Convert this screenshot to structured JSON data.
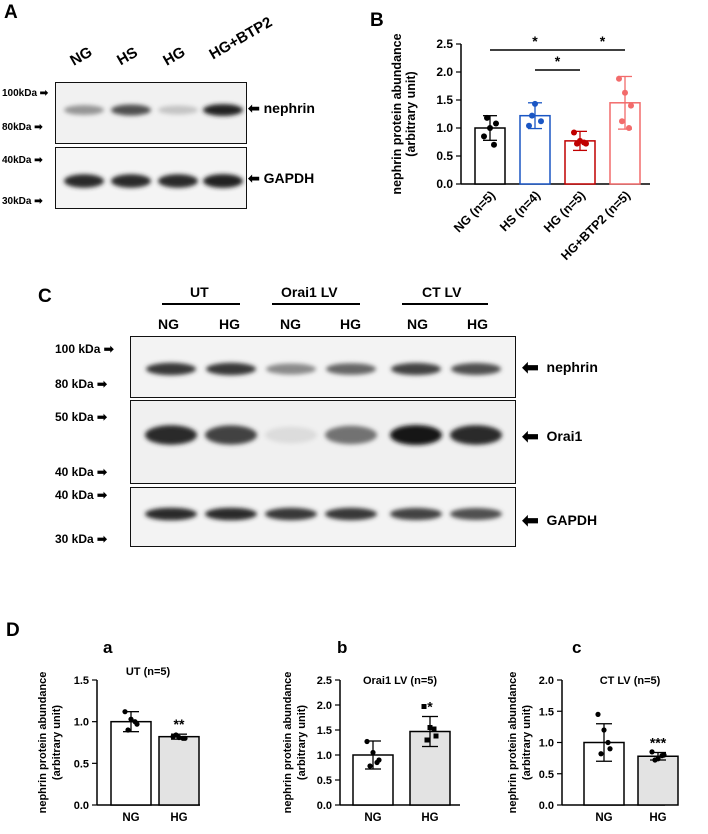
{
  "panel_a": {
    "letter": "A",
    "lanes": [
      "NG",
      "HS",
      "HG",
      "HG+BTP2"
    ],
    "markers_top": [
      "100kDa",
      "80kDa"
    ],
    "markers_bottom": [
      "40kDa",
      "30kDa"
    ],
    "band_labels": [
      "nephrin",
      "GAPDH"
    ],
    "band_intensity_top": [
      0.45,
      0.75,
      0.25,
      0.95
    ],
    "band_intensity_bottom": [
      0.9,
      0.9,
      0.9,
      0.95
    ]
  },
  "panel_b": {
    "letter": "B",
    "sig_markers": [
      "*",
      "*",
      "*"
    ]
  },
  "panel_c": {
    "letter": "C",
    "groups": [
      "UT",
      "Orai1 LV",
      "CT LV"
    ],
    "lanes": [
      "NG",
      "HG",
      "NG",
      "HG",
      "NG",
      "HG"
    ],
    "markers_1": [
      "100 kDa",
      "80 kDa"
    ],
    "markers_2": [
      "50 kDa",
      "40 kDa"
    ],
    "markers_3": [
      "40 kDa",
      "30 kDa"
    ],
    "band_labels": [
      "nephrin",
      "Orai1",
      "GAPDH"
    ],
    "nephrin_intensity": [
      0.85,
      0.85,
      0.5,
      0.65,
      0.8,
      0.75
    ],
    "orai1_intensity": [
      0.9,
      0.8,
      0.15,
      0.6,
      1.0,
      0.9
    ],
    "gapdh_intensity": [
      0.9,
      0.9,
      0.85,
      0.85,
      0.8,
      0.75
    ]
  },
  "panel_d": {
    "letter": "D"
  },
  "chart_data": [
    {
      "panel": "B",
      "type": "bar",
      "categories": [
        "NG (n=5)",
        "HS (n=4)",
        "HG (n=5)",
        "HG+BTP2 (n=5)"
      ],
      "values": [
        1.0,
        1.22,
        0.77,
        1.45
      ],
      "errors": [
        0.22,
        0.23,
        0.17,
        0.47
      ],
      "points": [
        [
          0.85,
          1.0,
          1.08,
          1.18,
          0.7
        ],
        [
          1.04,
          1.43,
          1.12,
          1.22
        ],
        [
          0.92,
          0.77,
          0.72,
          0.72,
          0.74
        ],
        [
          1.88,
          1.63,
          1.4,
          1.12,
          1.0
        ]
      ],
      "colors": [
        "#000000",
        "#1a56c4",
        "#c00000",
        "#f26b6b"
      ],
      "ylabel": "nephrin protein abundance\n(arbitrary unit)",
      "ylabel_lines": [
        "nephrin protein abundance",
        "(arbitrary unit)"
      ],
      "ylim": [
        0,
        2.5
      ],
      "yticks": [
        "0.0",
        "0.5",
        "1.0",
        "1.5",
        "2.0",
        "2.5"
      ],
      "significance": [
        {
          "from": 0,
          "to": 2,
          "label": "*"
        },
        {
          "from": 1,
          "to": 2,
          "label": "*"
        },
        {
          "from": 2,
          "to": 3,
          "label": "*"
        }
      ]
    },
    {
      "panel": "a",
      "type": "bar",
      "title": "UT (n=5)",
      "categories": [
        "NG",
        "HG"
      ],
      "values": [
        1.0,
        0.82
      ],
      "errors": [
        0.12,
        0.03
      ],
      "points": [
        [
          1.12,
          1.03,
          0.97,
          0.9,
          1.0
        ],
        [
          0.82,
          0.81,
          0.8,
          0.84,
          0.8
        ]
      ],
      "fills": [
        "#ffffff",
        "#e3e3e3"
      ],
      "annotation": "**",
      "ylabel_lines": [
        "nephrin protein abundance",
        "(arbitrary unit)"
      ],
      "ylim": [
        0,
        1.5
      ],
      "yticks": [
        "0.0",
        "0.5",
        "1.0",
        "1.5"
      ]
    },
    {
      "panel": "b",
      "type": "bar",
      "title": "Orai1 LV (n=5)",
      "categories": [
        "NG",
        "HG"
      ],
      "values": [
        1.0,
        1.47
      ],
      "errors": [
        0.28,
        0.3
      ],
      "points": [
        [
          1.27,
          1.05,
          0.9,
          0.78,
          0.85
        ],
        [
          1.97,
          1.55,
          1.38,
          1.3,
          1.52
        ]
      ],
      "fills": [
        "#ffffff",
        "#e3e3e3"
      ],
      "annotation": "*",
      "ylabel_lines": [
        "nephrin protein abundance",
        "(arbitrary unit)"
      ],
      "ylim": [
        0,
        2.5
      ],
      "yticks": [
        "0.0",
        "0.5",
        "1.0",
        "1.5",
        "2.0",
        "2.5"
      ]
    },
    {
      "panel": "c",
      "type": "bar",
      "title": "CT LV (n=5)",
      "categories": [
        "NG",
        "HG"
      ],
      "values": [
        1.0,
        0.78
      ],
      "errors": [
        0.3,
        0.06
      ],
      "points": [
        [
          1.45,
          1.2,
          0.9,
          0.82,
          1.0
        ],
        [
          0.85,
          0.74,
          0.8,
          0.72,
          0.79
        ]
      ],
      "fills": [
        "#ffffff",
        "#e3e3e3"
      ],
      "annotation": "***",
      "ylabel_lines": [
        "nephrin protein abundance",
        "(arbitrary unit)"
      ],
      "ylim": [
        0,
        2.0
      ],
      "yticks": [
        "0.0",
        "0.5",
        "1.0",
        "1.5",
        "2.0"
      ]
    }
  ]
}
